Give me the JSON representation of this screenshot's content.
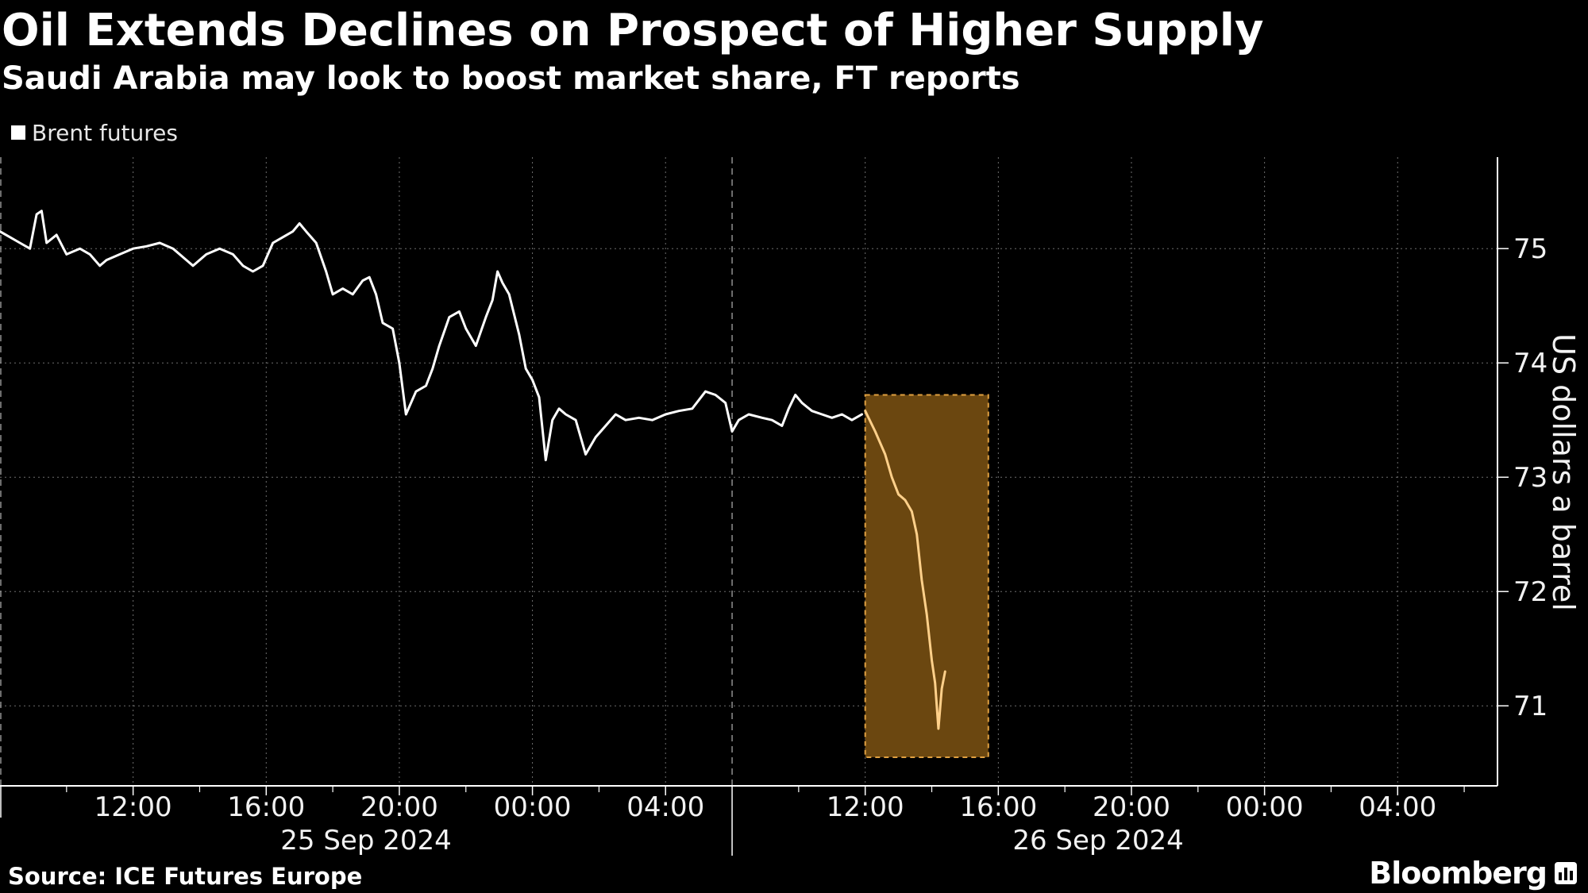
{
  "header": {
    "title": "Oil Extends Declines on Prospect of Higher Supply",
    "subtitle": "Saudi Arabia may look to boost market share, FT reports"
  },
  "footer": {
    "source": "Source: ICE Futures Europe",
    "brand": "Bloomberg"
  },
  "colors": {
    "background": "#000000",
    "line": "#ffffff",
    "highlight_fill": "#6b4710",
    "highlight_border": "#e0a040",
    "highlight_line": "#ffd08a",
    "grid": "#6e6e6e"
  },
  "chart_data": {
    "type": "line",
    "legend": {
      "entries": [
        "Brent futures"
      ],
      "placement": "top-left"
    },
    "ylabel": "US dollars a barrel",
    "ylim": [
      70.3,
      75.8
    ],
    "yticks": [
      71,
      72,
      73,
      74,
      75
    ],
    "y_axis_side": "right",
    "grid": true,
    "x_unit": "hours since 25 Sep 2024 08:00",
    "xlim": [
      0,
      45
    ],
    "xticks": [
      {
        "x": 4,
        "label": "12:00"
      },
      {
        "x": 8,
        "label": "16:00"
      },
      {
        "x": 12,
        "label": "20:00"
      },
      {
        "x": 16,
        "label": "00:00"
      },
      {
        "x": 20,
        "label": "04:00"
      },
      {
        "x": 26,
        "label": "12:00"
      },
      {
        "x": 30,
        "label": "16:00"
      },
      {
        "x": 34,
        "label": "20:00"
      },
      {
        "x": 38,
        "label": "00:00"
      },
      {
        "x": 42,
        "label": "04:00"
      }
    ],
    "minor_ticks": [
      2,
      6,
      10,
      14,
      18,
      24,
      28,
      32,
      36,
      40,
      44
    ],
    "day_separators": [
      22
    ],
    "day_labels": [
      {
        "x": 11,
        "label": "25 Sep 2024"
      },
      {
        "x": 33,
        "label": "26 Sep 2024"
      }
    ],
    "highlight": {
      "x": [
        26.0,
        29.7
      ],
      "y": [
        70.55,
        73.72
      ]
    },
    "series": [
      {
        "name": "Brent futures",
        "points": [
          [
            0,
            75.15
          ],
          [
            0.3,
            75.1
          ],
          [
            0.6,
            75.05
          ],
          [
            0.9,
            75.0
          ],
          [
            1.1,
            75.3
          ],
          [
            1.25,
            75.33
          ],
          [
            1.4,
            75.05
          ],
          [
            1.7,
            75.12
          ],
          [
            2.0,
            74.95
          ],
          [
            2.4,
            75.0
          ],
          [
            2.7,
            74.95
          ],
          [
            3.0,
            74.85
          ],
          [
            3.2,
            74.9
          ],
          [
            3.6,
            74.95
          ],
          [
            4.0,
            75.0
          ],
          [
            4.4,
            75.02
          ],
          [
            4.8,
            75.05
          ],
          [
            5.2,
            75.0
          ],
          [
            5.6,
            74.9
          ],
          [
            5.8,
            74.85
          ],
          [
            6.2,
            74.95
          ],
          [
            6.6,
            75.0
          ],
          [
            7.0,
            74.95
          ],
          [
            7.3,
            74.85
          ],
          [
            7.6,
            74.8
          ],
          [
            7.9,
            74.85
          ],
          [
            8.2,
            75.05
          ],
          [
            8.5,
            75.1
          ],
          [
            8.8,
            75.15
          ],
          [
            9.0,
            75.22
          ],
          [
            9.2,
            75.15
          ],
          [
            9.5,
            75.05
          ],
          [
            9.8,
            74.8
          ],
          [
            10.0,
            74.6
          ],
          [
            10.3,
            74.65
          ],
          [
            10.6,
            74.6
          ],
          [
            10.9,
            74.72
          ],
          [
            11.1,
            74.75
          ],
          [
            11.3,
            74.6
          ],
          [
            11.5,
            74.35
          ],
          [
            11.8,
            74.3
          ],
          [
            12.0,
            74.0
          ],
          [
            12.2,
            73.55
          ],
          [
            12.5,
            73.75
          ],
          [
            12.8,
            73.8
          ],
          [
            13.0,
            73.95
          ],
          [
            13.2,
            74.15
          ],
          [
            13.5,
            74.4
          ],
          [
            13.8,
            74.45
          ],
          [
            14.0,
            74.3
          ],
          [
            14.3,
            74.15
          ],
          [
            14.6,
            74.4
          ],
          [
            14.8,
            74.55
          ],
          [
            14.95,
            74.8
          ],
          [
            15.1,
            74.7
          ],
          [
            15.3,
            74.6
          ],
          [
            15.6,
            74.25
          ],
          [
            15.8,
            73.95
          ],
          [
            16.0,
            73.85
          ],
          [
            16.2,
            73.7
          ],
          [
            16.4,
            73.15
          ],
          [
            16.6,
            73.5
          ],
          [
            16.8,
            73.6
          ],
          [
            17.0,
            73.55
          ],
          [
            17.3,
            73.5
          ],
          [
            17.6,
            73.2
          ],
          [
            17.9,
            73.35
          ],
          [
            18.2,
            73.45
          ],
          [
            18.5,
            73.55
          ],
          [
            18.8,
            73.5
          ],
          [
            19.2,
            73.52
          ],
          [
            19.6,
            73.5
          ],
          [
            20.0,
            73.55
          ],
          [
            20.4,
            73.58
          ],
          [
            20.8,
            73.6
          ],
          [
            21.2,
            73.75
          ],
          [
            21.5,
            73.72
          ],
          [
            21.8,
            73.65
          ],
          [
            22.0,
            73.4
          ],
          [
            22.2,
            73.5
          ],
          [
            22.5,
            73.55
          ],
          [
            22.9,
            73.52
          ],
          [
            23.2,
            73.5
          ],
          [
            23.5,
            73.45
          ],
          [
            23.7,
            73.6
          ],
          [
            23.9,
            73.72
          ],
          [
            24.1,
            73.65
          ],
          [
            24.4,
            73.58
          ],
          [
            24.7,
            73.55
          ],
          [
            25.0,
            73.52
          ],
          [
            25.3,
            73.55
          ],
          [
            25.6,
            73.5
          ],
          [
            25.9,
            73.55
          ]
        ]
      },
      {
        "name": "highlight-segment",
        "points": [
          [
            26.0,
            73.58
          ],
          [
            26.3,
            73.4
          ],
          [
            26.6,
            73.2
          ],
          [
            26.8,
            73.0
          ],
          [
            27.0,
            72.85
          ],
          [
            27.2,
            72.8
          ],
          [
            27.4,
            72.7
          ],
          [
            27.55,
            72.5
          ],
          [
            27.7,
            72.1
          ],
          [
            27.85,
            71.8
          ],
          [
            28.0,
            71.4
          ],
          [
            28.1,
            71.2
          ],
          [
            28.2,
            70.8
          ],
          [
            28.3,
            71.15
          ],
          [
            28.4,
            71.3
          ]
        ]
      }
    ]
  }
}
